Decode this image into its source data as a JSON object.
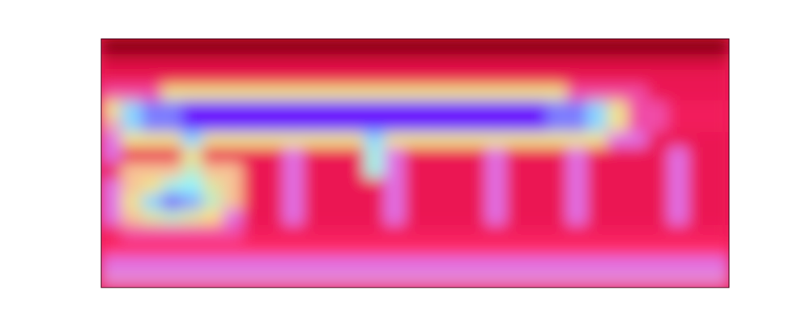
{
  "chart_data": {
    "type": "heatmap",
    "tick_labels": false,
    "z": [
      [
        12,
        12,
        12,
        12,
        12,
        12,
        12,
        12,
        12,
        12,
        12,
        12,
        12,
        12,
        12,
        12,
        12,
        12,
        12,
        12,
        12,
        12,
        12,
        12,
        12,
        12,
        12,
        12,
        12,
        12,
        12
      ],
      [
        35,
        35,
        35,
        35,
        35,
        35,
        35,
        35,
        35,
        35,
        35,
        35,
        35,
        35,
        35,
        35,
        35,
        35,
        35,
        35,
        35,
        35,
        35,
        35,
        35,
        35,
        35,
        35,
        35,
        35,
        35
      ],
      [
        40,
        40,
        40,
        40,
        40,
        40,
        40,
        40,
        40,
        40,
        40,
        40,
        40,
        40,
        40,
        40,
        40,
        40,
        40,
        40,
        40,
        40,
        40,
        40,
        40,
        40,
        40,
        40,
        40,
        40,
        40
      ],
      [
        50,
        50,
        50,
        70,
        70,
        70,
        70,
        70,
        70,
        70,
        70,
        70,
        70,
        70,
        70,
        70,
        70,
        70,
        70,
        70,
        70,
        70,
        70,
        50,
        50,
        50,
        50,
        40,
        40,
        40,
        40
      ],
      [
        70,
        82,
        88,
        88,
        95,
        95,
        95,
        95,
        95,
        95,
        95,
        95,
        95,
        95,
        95,
        95,
        95,
        95,
        95,
        95,
        95,
        95,
        88,
        88,
        82,
        70,
        50,
        50,
        42,
        42,
        42
      ],
      [
        62,
        82,
        88,
        88,
        95,
        95,
        95,
        95,
        95,
        95,
        95,
        95,
        95,
        95,
        95,
        95,
        95,
        95,
        95,
        95,
        95,
        95,
        88,
        88,
        82,
        70,
        50,
        50,
        42,
        42,
        42
      ],
      [
        55,
        70,
        70,
        70,
        82,
        70,
        70,
        70,
        70,
        70,
        70,
        70,
        70,
        82,
        70,
        70,
        70,
        70,
        70,
        70,
        70,
        70,
        70,
        70,
        70,
        55,
        55,
        40,
        40,
        40,
        40
      ],
      [
        55,
        40,
        40,
        40,
        70,
        40,
        40,
        40,
        40,
        55,
        40,
        40,
        40,
        78,
        55,
        40,
        40,
        40,
        40,
        55,
        40,
        40,
        40,
        55,
        40,
        40,
        40,
        40,
        55,
        40,
        40
      ],
      [
        40,
        65,
        65,
        65,
        75,
        65,
        65,
        40,
        40,
        55,
        40,
        40,
        40,
        78,
        55,
        40,
        40,
        40,
        40,
        55,
        40,
        40,
        40,
        55,
        40,
        40,
        40,
        40,
        55,
        40,
        40
      ],
      [
        55,
        65,
        70,
        78,
        80,
        72,
        65,
        40,
        40,
        55,
        40,
        40,
        40,
        40,
        55,
        40,
        40,
        40,
        40,
        55,
        40,
        40,
        40,
        55,
        40,
        40,
        40,
        40,
        55,
        40,
        40
      ],
      [
        55,
        70,
        82,
        90,
        85,
        75,
        65,
        40,
        40,
        55,
        40,
        40,
        40,
        40,
        55,
        40,
        40,
        40,
        40,
        55,
        40,
        40,
        40,
        55,
        40,
        40,
        40,
        40,
        55,
        40,
        40
      ],
      [
        55,
        65,
        72,
        75,
        72,
        68,
        55,
        40,
        40,
        55,
        40,
        40,
        40,
        40,
        55,
        40,
        40,
        40,
        40,
        55,
        40,
        40,
        40,
        55,
        40,
        40,
        40,
        40,
        55,
        40,
        40
      ],
      [
        42,
        50,
        50,
        50,
        50,
        50,
        50,
        42,
        42,
        42,
        42,
        42,
        42,
        42,
        42,
        42,
        42,
        42,
        42,
        42,
        42,
        42,
        42,
        42,
        42,
        42,
        42,
        42,
        42,
        42,
        42
      ],
      [
        45,
        45,
        45,
        45,
        45,
        45,
        45,
        45,
        45,
        45,
        45,
        45,
        45,
        45,
        45,
        45,
        45,
        45,
        45,
        45,
        45,
        45,
        45,
        45,
        45,
        45,
        45,
        45,
        45,
        45,
        45
      ],
      [
        55,
        55,
        55,
        55,
        55,
        55,
        55,
        55,
        55,
        55,
        55,
        55,
        55,
        55,
        55,
        55,
        55,
        55,
        55,
        55,
        55,
        55,
        55,
        55,
        55,
        55,
        55,
        55,
        55,
        55,
        55
      ],
      [
        58,
        58,
        58,
        58,
        58,
        58,
        58,
        58,
        58,
        58,
        58,
        58,
        58,
        58,
        58,
        58,
        58,
        58,
        58,
        58,
        58,
        58,
        58,
        58,
        58,
        58,
        58,
        58,
        58,
        58,
        58
      ]
    ]
  }
}
